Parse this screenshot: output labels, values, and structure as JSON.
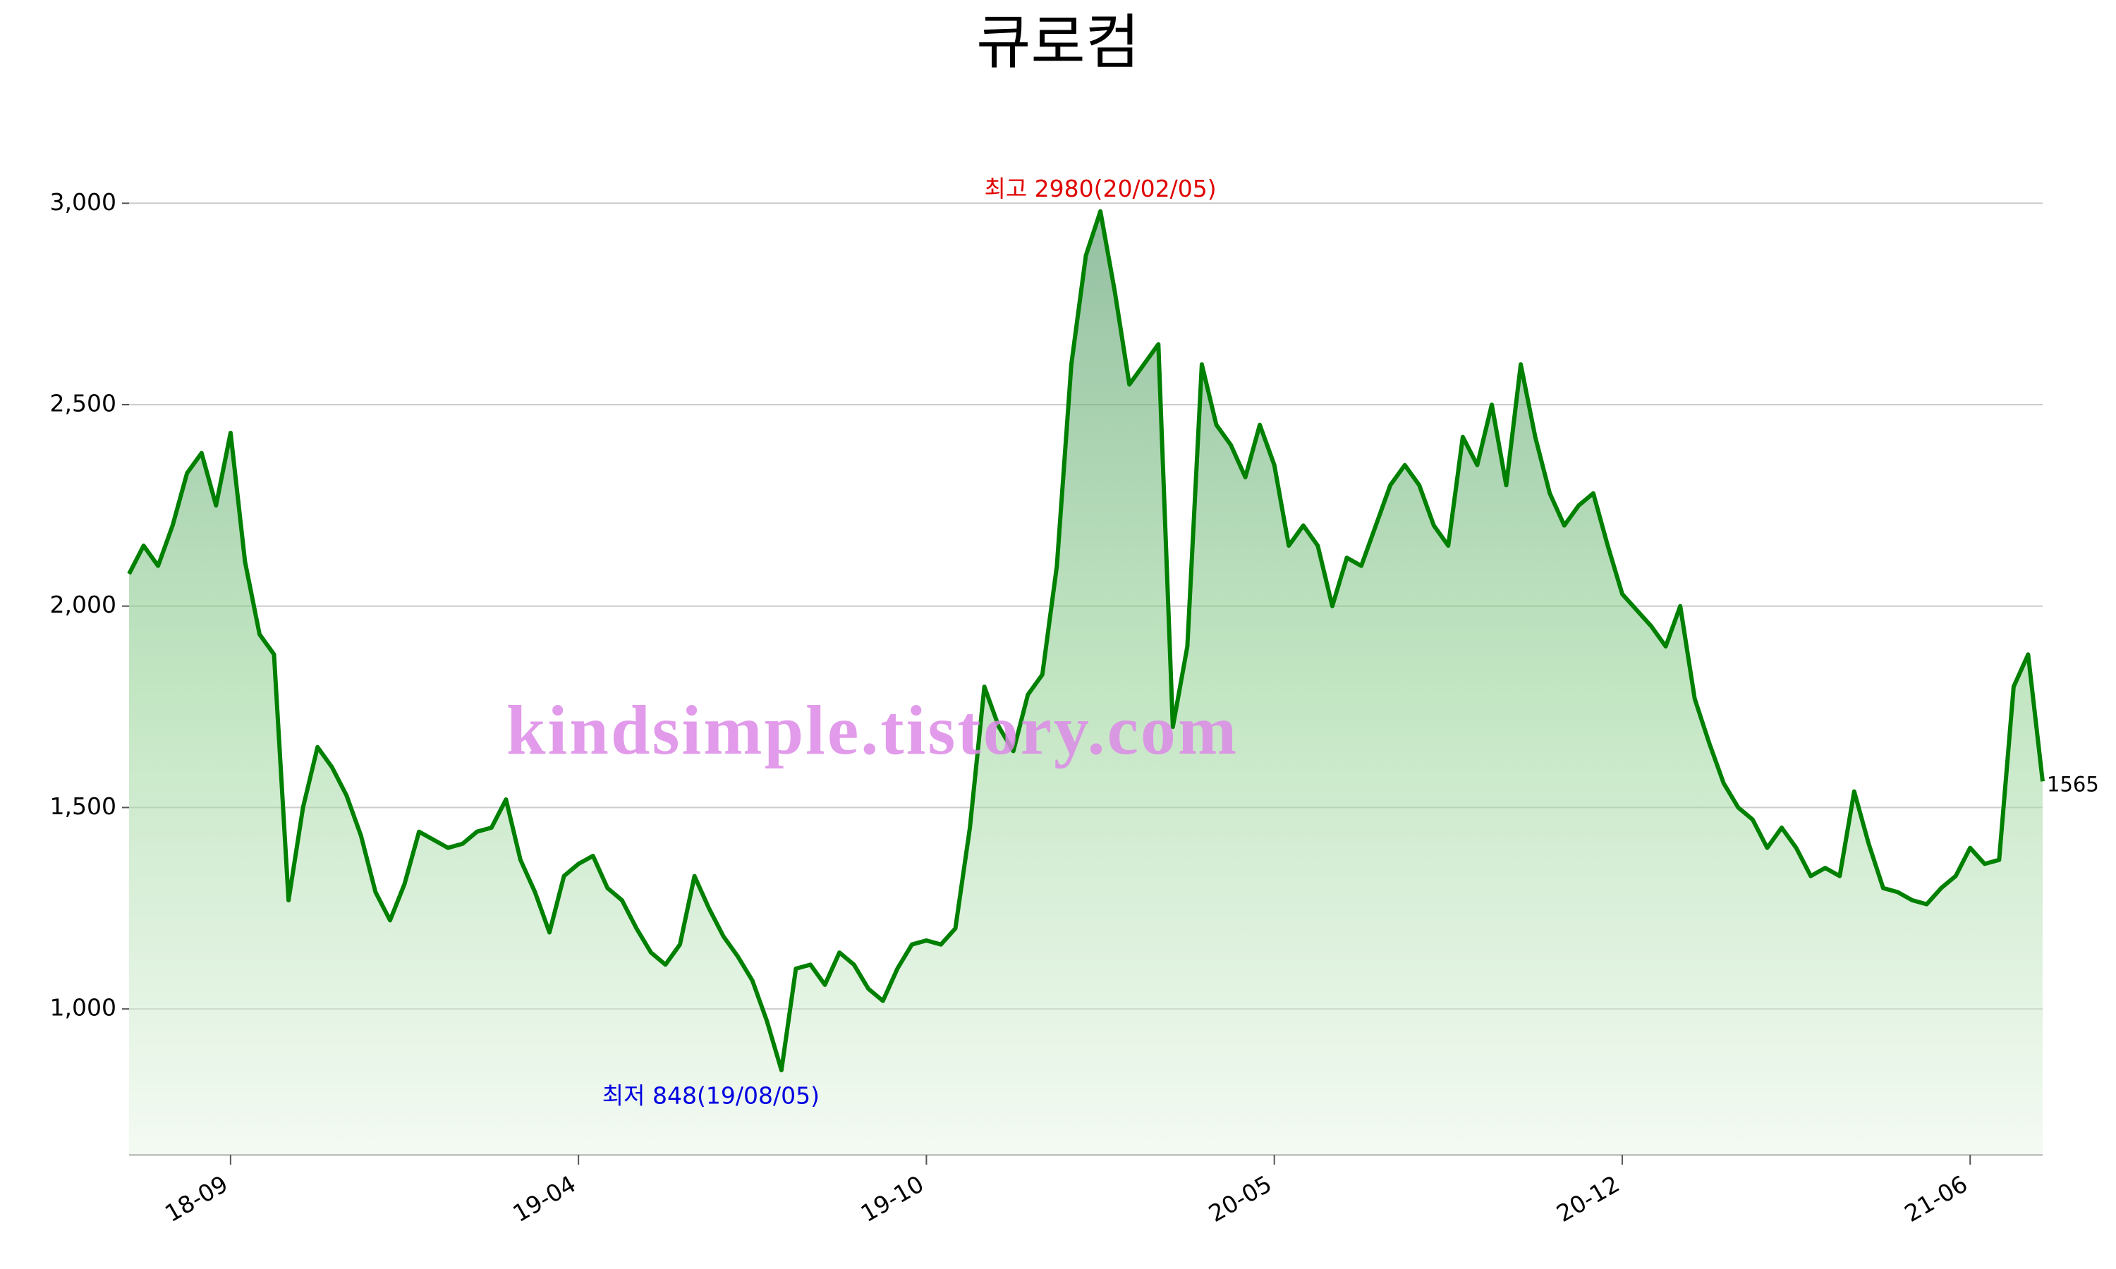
{
  "chart_data": {
    "type": "line",
    "title": "큐로컴",
    "watermark": "kindsimple.tistory.com",
    "color": "#008000",
    "grid": true,
    "annotations": [
      "최고 2980(20/02/05)",
      "최저 848(19/08/05)"
    ],
    "categories": [
      null,
      null,
      null,
      null,
      null,
      null,
      null,
      "18-09",
      null,
      null,
      null,
      null,
      null,
      null,
      null,
      null,
      null,
      null,
      null,
      null,
      null,
      null,
      null,
      null,
      null,
      null,
      null,
      null,
      null,
      null,
      null,
      "19-04",
      null,
      null,
      null,
      null,
      null,
      null,
      null,
      null,
      null,
      null,
      null,
      null,
      null,
      null,
      null,
      null,
      null,
      null,
      null,
      null,
      null,
      null,
      null,
      "19-10",
      null,
      null,
      null,
      null,
      null,
      null,
      null,
      null,
      null,
      null,
      null,
      null,
      null,
      null,
      null,
      null,
      null,
      null,
      null,
      null,
      null,
      null,
      null,
      "20-05",
      null,
      null,
      null,
      null,
      null,
      null,
      null,
      null,
      null,
      null,
      null,
      null,
      null,
      null,
      null,
      null,
      null,
      null,
      null,
      null,
      null,
      null,
      null,
      "20-12",
      null,
      null,
      null,
      null,
      null,
      null,
      null,
      null,
      null,
      null,
      null,
      null,
      null,
      null,
      null,
      null,
      null,
      null,
      null,
      null,
      null,
      null,
      null,
      "21-06",
      null,
      null,
      null,
      null,
      null
    ],
    "values": [
      2080,
      2150,
      2100,
      2200,
      2330,
      2380,
      2250,
      2430,
      2110,
      1930,
      1880,
      1270,
      1500,
      1650,
      1600,
      1530,
      1430,
      1290,
      1220,
      1310,
      1440,
      1420,
      1400,
      1410,
      1440,
      1450,
      1520,
      1370,
      1290,
      1190,
      1330,
      1360,
      1380,
      1300,
      1270,
      1200,
      1140,
      1110,
      1160,
      1330,
      1250,
      1180,
      1130,
      1070,
      970,
      848,
      1100,
      1110,
      1060,
      1140,
      1110,
      1050,
      1020,
      1100,
      1160,
      1170,
      1160,
      1200,
      1450,
      1800,
      1700,
      1640,
      1780,
      1830,
      2100,
      2600,
      2870,
      2980,
      2780,
      2550,
      2600,
      2650,
      1700,
      1900,
      2600,
      2450,
      2400,
      2320,
      2450,
      2350,
      2150,
      2200,
      2150,
      2000,
      2120,
      2100,
      2200,
      2300,
      2350,
      2300,
      2200,
      2150,
      2420,
      2350,
      2500,
      2300,
      2600,
      2420,
      2280,
      2200,
      2250,
      2280,
      2150,
      2030,
      1990,
      1950,
      1900,
      2000,
      1770,
      1660,
      1560,
      1500,
      1470,
      1400,
      1450,
      1400,
      1330,
      1350,
      1330,
      1540,
      1410,
      1300,
      1290,
      1270,
      1260,
      1300,
      1330,
      1400,
      1360,
      1370,
      1800,
      1880,
      1565
    ],
    "ylim": [
      638,
      3200
    ],
    "yticks": [
      {
        "value": 1000,
        "label": "1,000"
      },
      {
        "value": 1500,
        "label": "1,500"
      },
      {
        "value": 2000,
        "label": "2,000"
      },
      {
        "value": 2500,
        "label": "2,500"
      },
      {
        "value": 3000,
        "label": "3,000"
      }
    ]
  }
}
